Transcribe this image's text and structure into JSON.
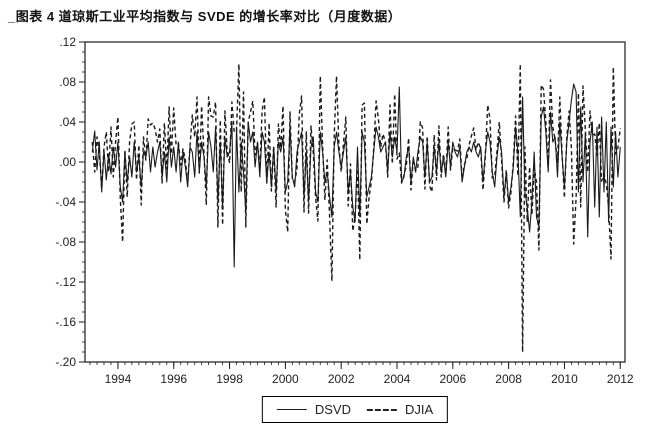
{
  "page": {
    "title": "_图表 4 道琼斯工业平均指数与 SVDE 的增长率对比（月度数据）"
  },
  "chart_data": {
    "type": "line",
    "title": "图表 4 道琼斯工业平均指数与 SVDE 的增长率对比（月度数据）",
    "xlabel": "",
    "ylabel": "",
    "grid": false,
    "legend_position": "bottom-center",
    "xlim": [
      1992.82,
      2012.17
    ],
    "ylim": [
      -0.2,
      0.12
    ],
    "x_ticks_major": [
      1994,
      1996,
      1998,
      2000,
      2002,
      2004,
      2006,
      2008,
      2010,
      2012
    ],
    "x_minor_tick_step": 0.25,
    "y_ticks_major": [
      0.12,
      0.08,
      0.04,
      0.0,
      -0.04,
      -0.08,
      -0.12,
      -0.16,
      -0.2
    ],
    "y_tick_labels": [
      ".12",
      ".08",
      ".04",
      ".00",
      "-.04",
      "-.08",
      "-.12",
      "-.16",
      "-.20"
    ],
    "y_minor_tick_step": 0.01,
    "x_start": 1993.0833,
    "x_step": 0.083333,
    "line_color": "#1a1a1a",
    "series": [
      {
        "name": "DSVD",
        "style": "solid",
        "values": [
          0.01,
          0.031,
          -0.008,
          0.02,
          -0.03,
          0.012,
          -0.018,
          0.008,
          -0.012,
          0.015,
          -0.005,
          0.02,
          -0.025,
          -0.04,
          0.01,
          -0.02,
          0.005,
          -0.015,
          0.02,
          -0.01,
          0.005,
          -0.025,
          0.01,
          0.005,
          0.02,
          -0.01,
          0.015,
          -0.005,
          0.01,
          0.02,
          -0.015,
          0.01,
          -0.02,
          0.025,
          -0.005,
          0.015,
          -0.01,
          0.02,
          -0.02,
          0.01,
          -0.005,
          -0.025,
          0.015,
          0.01,
          -0.015,
          0.03,
          -0.01,
          0.02,
          0.005,
          -0.025,
          0.03,
          0.015,
          -0.01,
          0.035,
          -0.04,
          0.02,
          -0.045,
          0.025,
          0.005,
          0.01,
          0.04,
          -0.105,
          0.035,
          -0.03,
          0.02,
          -0.01,
          -0.05,
          0.04,
          0.02,
          0.03,
          -0.005,
          0.02,
          -0.015,
          0.03,
          0.02,
          -0.02,
          0.01,
          -0.025,
          0.015,
          -0.03,
          0.02,
          0.01,
          0.025,
          -0.03,
          -0.02,
          0.035,
          -0.015,
          -0.025,
          0.01,
          0.02,
          0.03,
          -0.035,
          0.01,
          -0.04,
          0.015,
          0.025,
          -0.03,
          -0.04,
          0.03,
          0.01,
          -0.02,
          -0.01,
          -0.035,
          -0.055,
          0.015,
          0.03,
          0.01,
          -0.005,
          0.01,
          0.025,
          -0.03,
          -0.01,
          -0.045,
          -0.06,
          0.015,
          -0.055,
          0.03,
          0.02,
          -0.035,
          -0.025,
          -0.015,
          0.01,
          0.035,
          0.025,
          0.01,
          0.015,
          0.02,
          -0.01,
          0.03,
          0.005,
          0.025,
          0.01,
          0.075,
          -0.02,
          -0.015,
          0.005,
          0.015,
          -0.02,
          0.005,
          -0.01,
          0.01,
          0.025,
          0.02,
          -0.015,
          0.02,
          -0.02,
          -0.015,
          0.015,
          -0.01,
          0.02,
          -0.01,
          0.005,
          -0.015,
          0.02,
          -0.005,
          0.02,
          0.01,
          0.005,
          0.015,
          -0.02,
          -0.005,
          0.01,
          0.015,
          0.01,
          0.02,
          0.01,
          0.005,
          0.015,
          -0.02,
          0.01,
          0.03,
          0.02,
          -0.01,
          -0.025,
          0.005,
          0.025,
          0.01,
          -0.035,
          -0.01,
          -0.04,
          -0.025,
          -0.005,
          0.035,
          0.01,
          -0.055,
          0.065,
          -0.03,
          -0.045,
          -0.07,
          -0.04,
          0.01,
          -0.055,
          -0.065,
          0.045,
          0.055,
          0.03,
          -0.01,
          0.05,
          0.02,
          0.025,
          -0.015,
          0.04,
          0.005,
          -0.025,
          0.02,
          0.04,
          0.062,
          0.078,
          0.07,
          -0.03,
          0.055,
          -0.02,
          0.03,
          -0.075,
          0.02,
          0.04,
          -0.045,
          0.035,
          -0.055,
          0.045,
          -0.03,
          0.04,
          -0.06,
          0.035,
          -0.025,
          0.03,
          -0.015,
          0.015
        ]
      },
      {
        "name": "DJIA",
        "style": "dashed",
        "values": [
          0.02,
          -0.01,
          0.025,
          0.01,
          -0.027,
          0.015,
          0.03,
          -0.01,
          0.035,
          -0.015,
          0.02,
          0.045,
          -0.037,
          -0.08,
          0.012,
          -0.035,
          0.02,
          0.038,
          0.04,
          -0.018,
          0.017,
          -0.043,
          0.025,
          0.002,
          0.043,
          0.037,
          0.039,
          0.033,
          0.02,
          0.033,
          -0.021,
          0.039,
          -0.007,
          0.055,
          0.008,
          0.054,
          0.017,
          0.019,
          -0.003,
          0.013,
          0.002,
          -0.022,
          0.016,
          0.047,
          0.025,
          0.065,
          -0.011,
          0.056,
          0.009,
          -0.043,
          0.065,
          0.046,
          0.045,
          0.06,
          -0.065,
          0.042,
          -0.063,
          0.051,
          0.011,
          -0.001,
          0.06,
          0.03,
          0.03,
          0.098,
          -0.03,
          0.07,
          -0.065,
          0.04,
          0.05,
          0.061,
          0.007,
          0.019,
          -0.006,
          0.051,
          0.065,
          -0.021,
          0.039,
          -0.029,
          0.016,
          -0.045,
          0.038,
          0.014,
          0.056,
          -0.048,
          -0.07,
          0.05,
          -0.017,
          -0.02,
          -0.007,
          0.048,
          0.066,
          -0.05,
          0.03,
          -0.051,
          0.036,
          0.009,
          -0.036,
          -0.059,
          0.086,
          0.016,
          -0.038,
          0.002,
          -0.054,
          -0.119,
          0.026,
          0.086,
          0.017,
          -0.01,
          0.019,
          0.045,
          -0.044,
          -0.002,
          -0.069,
          -0.055,
          -0.003,
          -0.098,
          0.057,
          0.059,
          -0.062,
          -0.035,
          -0.02,
          0.013,
          0.061,
          0.043,
          0.015,
          0.028,
          0.02,
          -0.015,
          0.057,
          -0.002,
          0.068,
          0.003,
          0.009,
          -0.021,
          -0.013,
          -0.004,
          0.024,
          -0.028,
          0.003,
          -0.009,
          -0.005,
          0.04,
          0.034,
          -0.027,
          0.026,
          -0.024,
          -0.03,
          0.027,
          -0.018,
          0.036,
          -0.015,
          0.008,
          -0.012,
          0.035,
          -0.008,
          0.014,
          0.012,
          0.011,
          0.023,
          -0.017,
          -0.002,
          0.003,
          0.017,
          0.026,
          0.034,
          0.012,
          0.02,
          0.013,
          -0.028,
          0.007,
          0.057,
          0.043,
          -0.016,
          -0.015,
          0.011,
          0.04,
          0.002,
          -0.04,
          -0.008,
          -0.046,
          -0.03,
          0.0,
          0.046,
          -0.014,
          0.098,
          -0.19,
          0.015,
          -0.06,
          -0.005,
          -0.053,
          -0.006,
          -0.02,
          -0.088,
          0.077,
          0.073,
          0.041,
          -0.006,
          0.082,
          0.035,
          0.022,
          0.0,
          0.065,
          0.008,
          -0.036,
          0.025,
          0.051,
          0.014,
          -0.082,
          -0.036,
          0.069,
          -0.045,
          0.076,
          0.031,
          -0.01,
          0.051,
          0.027,
          0.028,
          0.007,
          0.039,
          -0.019,
          -0.012,
          -0.022,
          -0.045,
          -0.097,
          0.095,
          0.008,
          0.014,
          0.034
        ]
      }
    ]
  }
}
